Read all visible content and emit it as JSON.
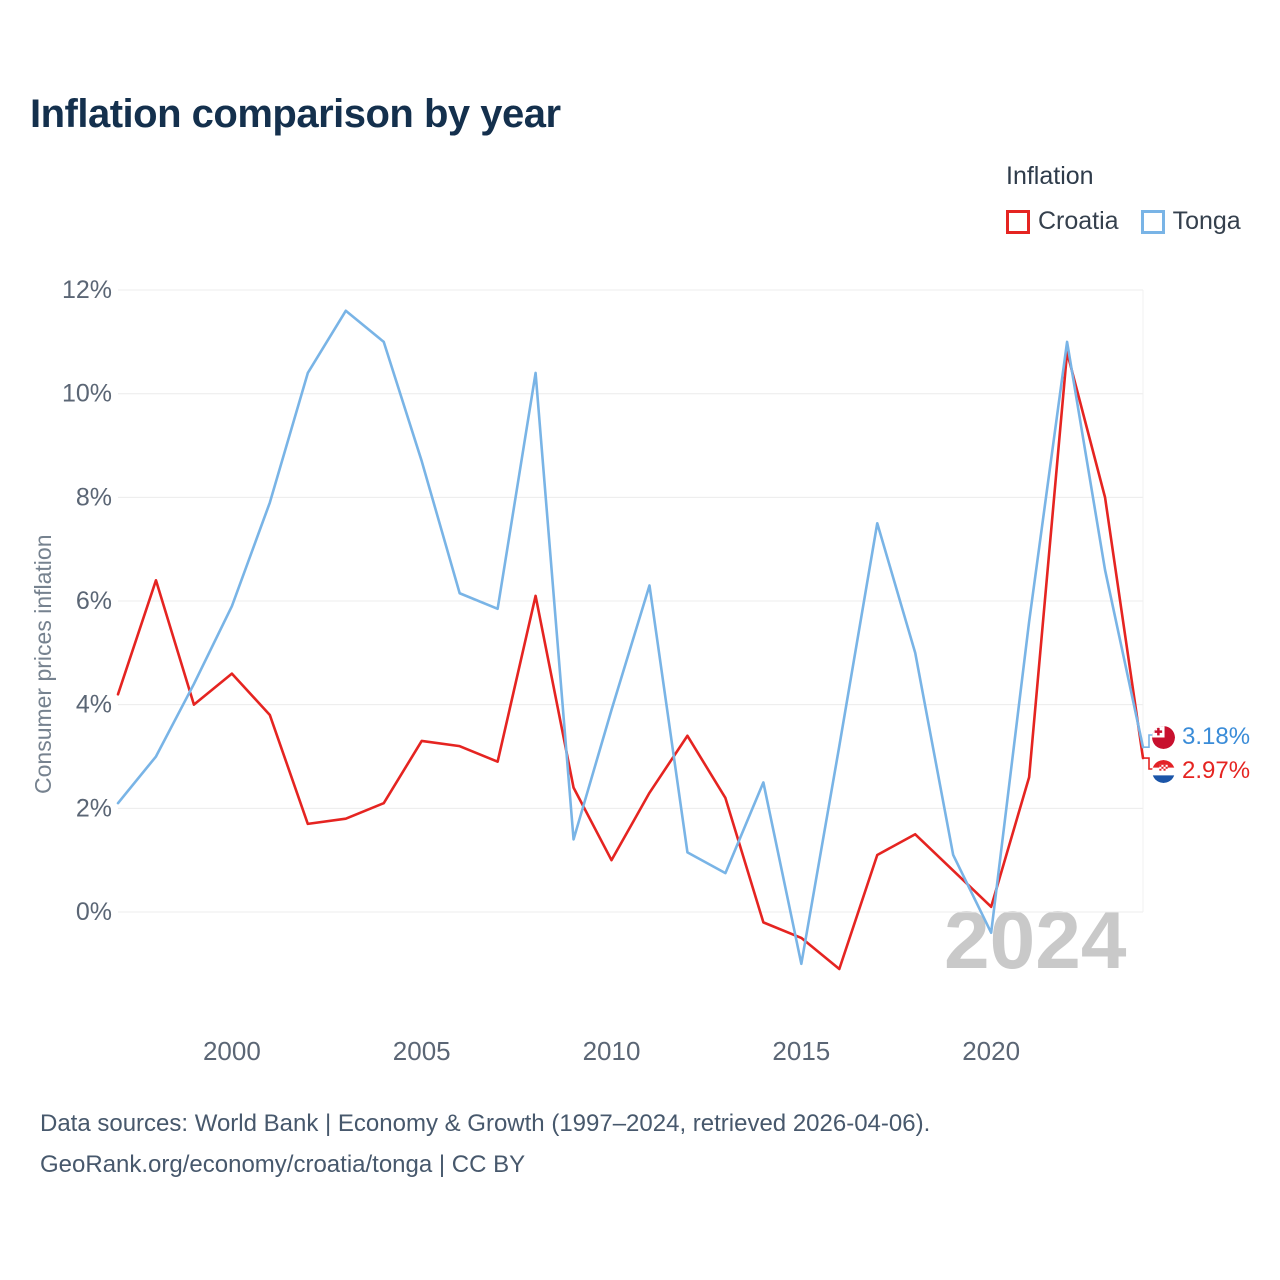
{
  "title": "Inflation comparison by year",
  "watermark": "2024",
  "legend": {
    "title": "Inflation",
    "series": [
      {
        "label": "Croatia",
        "color": "#e52421"
      },
      {
        "label": "Tonga",
        "color": "#79b4e6"
      }
    ]
  },
  "end_labels": [
    {
      "series": "Tonga",
      "value": "3.18%",
      "color": "#3a8cd8"
    },
    {
      "series": "Croatia",
      "value": "2.97%",
      "color": "#e52421"
    }
  ],
  "footer": {
    "line1": "Data sources: World Bank | Economy & Growth (1997–2024, retrieved 2026-04-06).",
    "line2": "GeoRank.org/economy/croatia/tonga | CC BY"
  },
  "chart_data": {
    "type": "line",
    "title": "Inflation comparison by year",
    "xlabel": "",
    "ylabel": "Consumer prices inflation",
    "ylim": [
      -1.5,
      12.5
    ],
    "grid": "horizontal",
    "legend_position": "top-right",
    "x": [
      1997,
      1998,
      1999,
      2000,
      2001,
      2002,
      2003,
      2004,
      2005,
      2006,
      2007,
      2008,
      2009,
      2010,
      2011,
      2012,
      2013,
      2014,
      2015,
      2016,
      2017,
      2018,
      2019,
      2020,
      2021,
      2022,
      2023,
      2024
    ],
    "xticks": [
      2000,
      2005,
      2010,
      2015,
      2020
    ],
    "yticks": [
      {
        "value": 0,
        "label": "0%"
      },
      {
        "value": 2,
        "label": "2%"
      },
      {
        "value": 4,
        "label": "4%"
      },
      {
        "value": 6,
        "label": "6%"
      },
      {
        "value": 8,
        "label": "8%"
      },
      {
        "value": 10,
        "label": "10%"
      },
      {
        "value": 12,
        "label": "12%"
      }
    ],
    "series": [
      {
        "name": "Croatia",
        "color": "#e52421",
        "values": [
          4.2,
          6.4,
          4.0,
          4.6,
          3.8,
          1.7,
          1.8,
          2.1,
          3.3,
          3.2,
          2.9,
          6.1,
          2.4,
          1.0,
          2.3,
          3.4,
          2.2,
          -0.2,
          -0.5,
          -1.1,
          1.1,
          1.5,
          0.8,
          0.1,
          2.6,
          10.8,
          8.0,
          2.97
        ]
      },
      {
        "name": "Tonga",
        "color": "#79b4e6",
        "values": [
          2.1,
          3.0,
          4.4,
          5.9,
          7.9,
          10.4,
          11.6,
          11.0,
          8.7,
          6.15,
          5.85,
          10.4,
          1.4,
          3.9,
          6.3,
          1.15,
          0.75,
          2.5,
          -1.0,
          3.2,
          7.5,
          5.0,
          1.1,
          -0.4,
          5.6,
          11.0,
          6.6,
          3.18
        ]
      }
    ]
  }
}
